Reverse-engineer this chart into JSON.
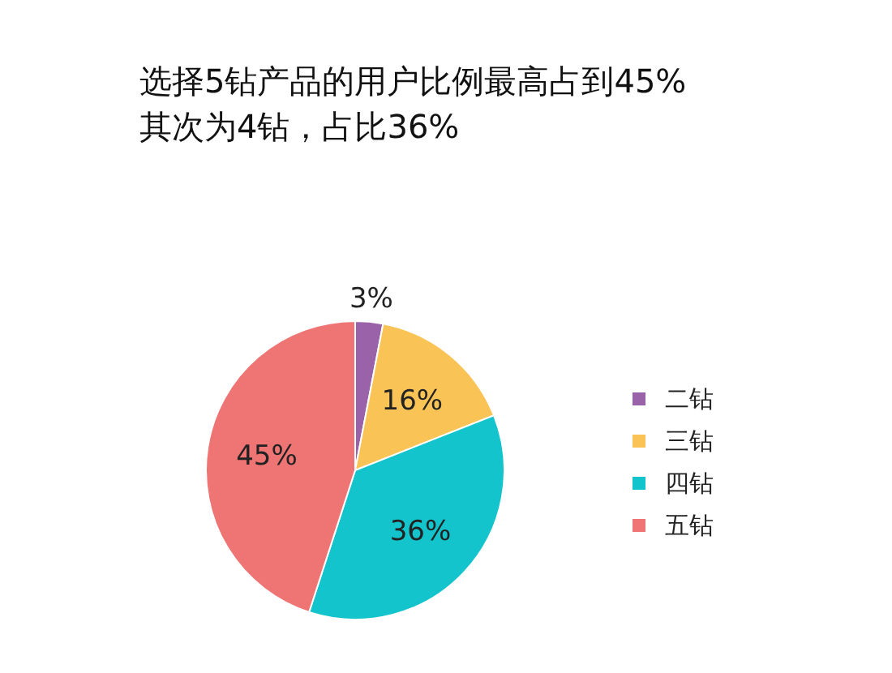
{
  "chart_data": {
    "type": "pie",
    "title": "选择5钻产品的用户比例最高占到45%\n其次为4钻，占比36%",
    "categories": [
      "二钻",
      "三钻",
      "四钻",
      "五钻"
    ],
    "values": [
      3,
      16,
      36,
      45
    ],
    "value_labels": [
      "3%",
      "16%",
      "36%",
      "45%"
    ],
    "colors": [
      "#9a62a8",
      "#f9c356",
      "#14c4cc",
      "#ef7474"
    ],
    "legend": "right"
  }
}
